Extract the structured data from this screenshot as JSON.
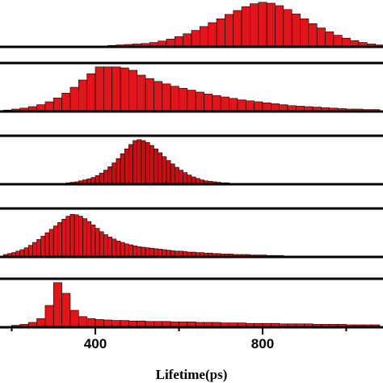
{
  "chart_data": [
    {
      "type": "histogram",
      "color": "#e0161b",
      "xlim": [
        172,
        1088
      ],
      "ylim": [
        0,
        100
      ],
      "bins": [
        410,
        430,
        450,
        470,
        490,
        510,
        530,
        550,
        570,
        590,
        610,
        630,
        650,
        670,
        690,
        710,
        730,
        750,
        770,
        790,
        810,
        830,
        850,
        870,
        890,
        910,
        930,
        950,
        970,
        990,
        1010,
        1030,
        1050,
        1070,
        1090
      ],
      "values": [
        2,
        3,
        4,
        5,
        6,
        7,
        9,
        12,
        16,
        21,
        27,
        34,
        42,
        50,
        58,
        67,
        75,
        83,
        89,
        92,
        90,
        85,
        77,
        68,
        58,
        48,
        39,
        31,
        24,
        18,
        13,
        9,
        6,
        4
      ]
    },
    {
      "type": "histogram",
      "color": "#e0161b",
      "xlim": [
        172,
        1088
      ],
      "ylim": [
        0,
        100
      ],
      "bins": [
        180,
        200,
        220,
        240,
        260,
        280,
        300,
        320,
        340,
        360,
        380,
        400,
        420,
        440,
        460,
        480,
        500,
        520,
        540,
        560,
        580,
        600,
        620,
        640,
        660,
        680,
        700,
        720,
        740,
        760,
        780,
        800,
        820,
        840,
        860,
        880,
        900,
        920,
        940,
        960,
        980,
        1000,
        1020,
        1040,
        1060,
        1080
      ],
      "values": [
        3,
        5,
        7,
        10,
        14,
        20,
        28,
        38,
        50,
        65,
        78,
        92,
        92,
        92,
        90,
        85,
        75,
        68,
        62,
        57,
        52,
        48,
        44,
        40,
        36,
        33,
        30,
        27,
        24,
        22,
        20,
        18,
        16,
        14,
        12,
        11,
        10,
        9,
        8,
        7,
        6,
        5,
        5,
        4,
        4
      ]
    },
    {
      "type": "histogram",
      "color": "#c81014",
      "xlim": [
        172,
        1088
      ],
      "ylim": [
        0,
        100
      ],
      "bins": [
        290,
        300,
        310,
        320,
        330,
        340,
        350,
        360,
        370,
        380,
        390,
        400,
        410,
        420,
        430,
        440,
        450,
        460,
        470,
        480,
        490,
        500,
        510,
        520,
        530,
        540,
        550,
        560,
        570,
        580,
        590,
        600,
        610,
        620,
        630,
        640,
        650,
        660,
        670,
        680,
        690,
        700,
        710,
        720,
        730,
        740,
        750,
        760,
        770,
        780,
        790
      ],
      "values": [
        1,
        1,
        2,
        2,
        3,
        4,
        5,
        7,
        9,
        11,
        14,
        18,
        23,
        29,
        36,
        44,
        53,
        63,
        73,
        82,
        90,
        92,
        90,
        86,
        80,
        73,
        65,
        57,
        49,
        42,
        35,
        29,
        24,
        19,
        15,
        12,
        9,
        7,
        6,
        5,
        4,
        3,
        3,
        2,
        2,
        2,
        1,
        1,
        1,
        1
      ]
    },
    {
      "type": "histogram",
      "color": "#d81419",
      "xlim": [
        172,
        1088
      ],
      "ylim": [
        0,
        100
      ],
      "bins": [
        180,
        190,
        200,
        210,
        220,
        230,
        240,
        250,
        260,
        270,
        280,
        290,
        300,
        310,
        320,
        330,
        340,
        350,
        360,
        370,
        380,
        390,
        400,
        410,
        420,
        430,
        440,
        450,
        460,
        470,
        480,
        490,
        500,
        510,
        520,
        530,
        540,
        550,
        560,
        570,
        580,
        590,
        600,
        610,
        620,
        630,
        640,
        650,
        660,
        670,
        680,
        690,
        700,
        710,
        720,
        730,
        740,
        750,
        760,
        770,
        780,
        790,
        800,
        810,
        820,
        830,
        840,
        850
      ],
      "values": [
        5,
        7,
        9,
        12,
        15,
        19,
        24,
        30,
        36,
        43,
        50,
        57,
        64,
        71,
        78,
        84,
        88,
        87,
        84,
        79,
        73,
        66,
        59,
        52,
        46,
        41,
        37,
        33,
        30,
        27,
        25,
        23,
        21,
        20,
        19,
        18,
        17,
        16,
        15,
        14,
        13,
        12,
        12,
        11,
        10,
        10,
        9,
        9,
        8,
        8,
        7,
        7,
        6,
        6,
        6,
        5,
        5,
        5,
        5,
        4,
        4,
        4,
        4,
        3,
        3,
        3,
        3
      ]
    },
    {
      "type": "histogram",
      "color": "#e0161b",
      "xlim": [
        172,
        1088
      ],
      "ylim": [
        0,
        100
      ],
      "bins": [
        180,
        200,
        220,
        240,
        260,
        280,
        300,
        320,
        340,
        360,
        380,
        400,
        420,
        440,
        460,
        480,
        500,
        520,
        540,
        560,
        580,
        600,
        620,
        640,
        660,
        680,
        700,
        720,
        740,
        760,
        780,
        800,
        820,
        840,
        860,
        880,
        900,
        920,
        940,
        960,
        980,
        1000,
        1020,
        1040,
        1060,
        1080
      ],
      "values": [
        2,
        4,
        6,
        10,
        18,
        45,
        92,
        70,
        35,
        22,
        18,
        16,
        15,
        14,
        14,
        13,
        13,
        12,
        12,
        12,
        11,
        11,
        11,
        10,
        10,
        10,
        9,
        9,
        9,
        8,
        8,
        8,
        8,
        7,
        7,
        7,
        7,
        6,
        6,
        6,
        6,
        5,
        5,
        5,
        5
      ],
      "xticks": [
        400,
        800
      ],
      "minor_xticks": [
        200,
        600,
        1000
      ],
      "xlabel": "Lifetime(ps)"
    }
  ]
}
